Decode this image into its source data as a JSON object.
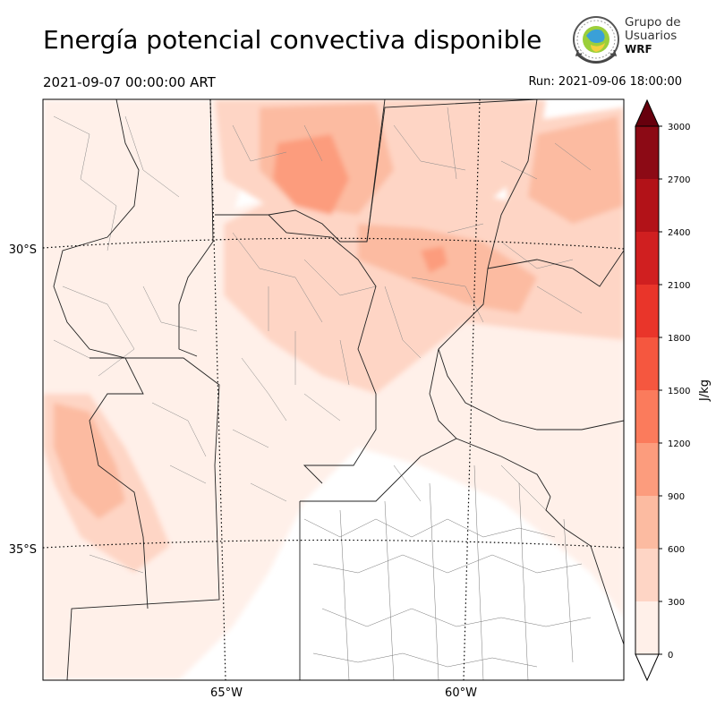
{
  "header": {
    "title": "Energía potencial convectiva disponible",
    "valid_time": "2021-09-07 00:00:00 ART",
    "run_time": "Run: 2021-09-06 18:00:00"
  },
  "logo": {
    "line1": "Grupo de",
    "line2": "Usuarios",
    "line3": "WRF"
  },
  "map": {
    "field": "CAPE",
    "lat_labels": [
      {
        "text": "30°S",
        "lat": -30
      },
      {
        "text": "35°S",
        "lat": -35
      }
    ],
    "lon_labels": [
      {
        "text": "65°W",
        "lon": -65
      },
      {
        "text": "60°W",
        "lon": -60
      }
    ]
  },
  "colorbar": {
    "unit": "J/kg",
    "levels": [
      0,
      300,
      600,
      900,
      1200,
      1500,
      1800,
      2100,
      2400,
      2700,
      3000
    ],
    "colors": [
      "#fff0e9",
      "#fed5c5",
      "#fcbba1",
      "#fc9c7d",
      "#fb7b5c",
      "#f5573f",
      "#e9352a",
      "#d01f20",
      "#b21218",
      "#8c0a15"
    ],
    "under_color": "#ffffff",
    "over_color": "#67000d"
  }
}
